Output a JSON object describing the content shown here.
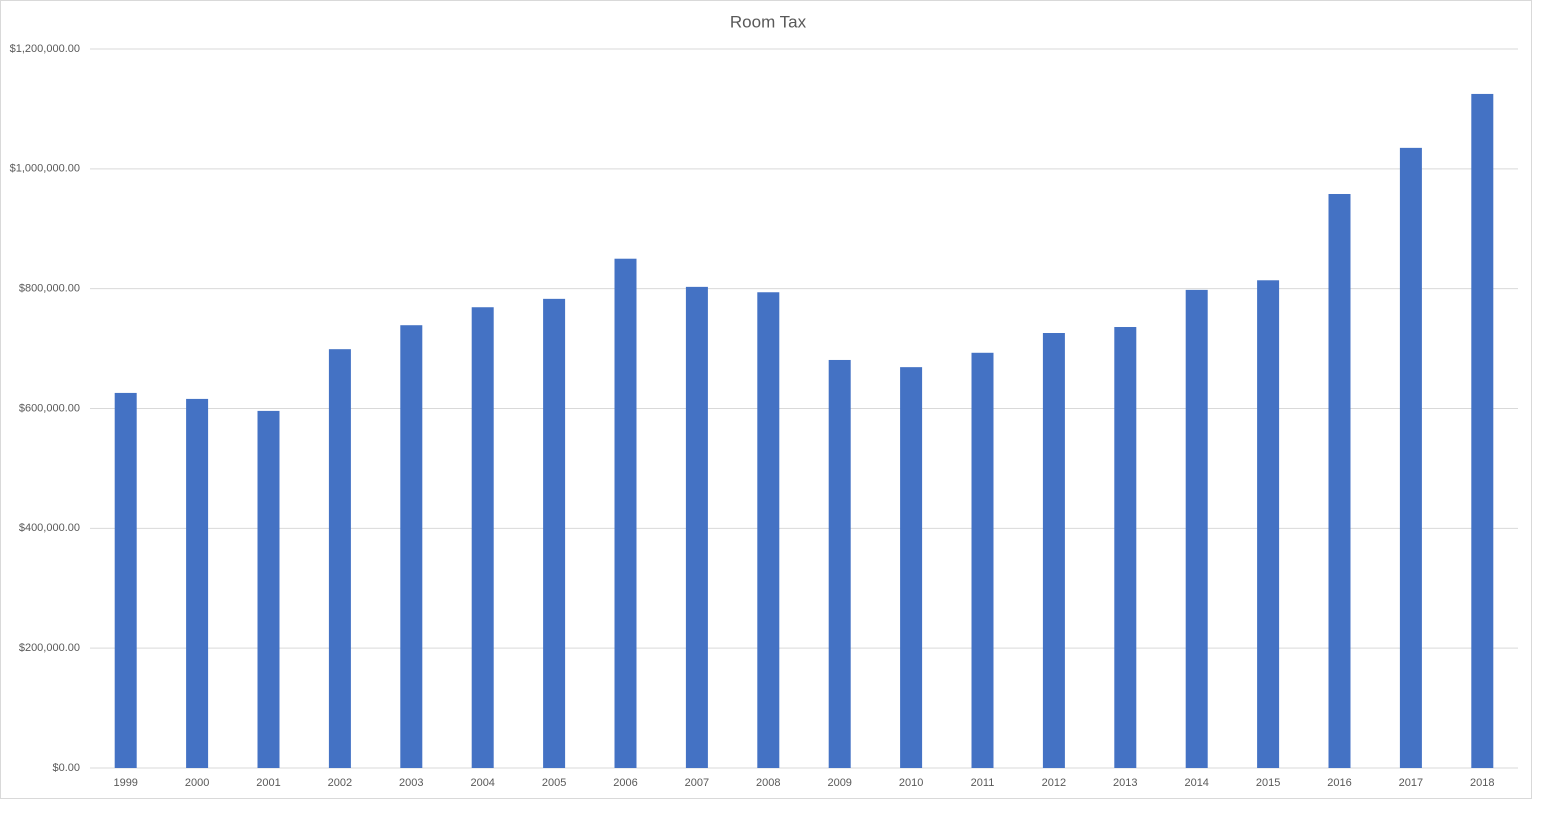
{
  "chart_data": {
    "type": "bar",
    "title": "Room Tax",
    "categories": [
      "1999",
      "2000",
      "2001",
      "2002",
      "2003",
      "2004",
      "2005",
      "2006",
      "2007",
      "2008",
      "2009",
      "2010",
      "2011",
      "2012",
      "2013",
      "2014",
      "2015",
      "2016",
      "2017",
      "2018"
    ],
    "values": [
      626000,
      616000,
      596000,
      699000,
      739000,
      769000,
      783000,
      850000,
      803000,
      794000,
      681000,
      669000,
      693000,
      726000,
      736000,
      798000,
      814000,
      958000,
      1035000,
      1125000
    ],
    "color": "#4472c4",
    "ylim": [
      0,
      1200000
    ],
    "yticks": [
      {
        "value": 0,
        "label": "$0.00"
      },
      {
        "value": 200000,
        "label": "$200,000.00"
      },
      {
        "value": 400000,
        "label": "$400,000.00"
      },
      {
        "value": 600000,
        "label": "$600,000.00"
      },
      {
        "value": 800000,
        "label": "$800,000.00"
      },
      {
        "value": 1000000,
        "label": "$1,000,000.00"
      },
      {
        "value": 1200000,
        "label": "$1,200,000.00"
      }
    ],
    "grid": true
  }
}
